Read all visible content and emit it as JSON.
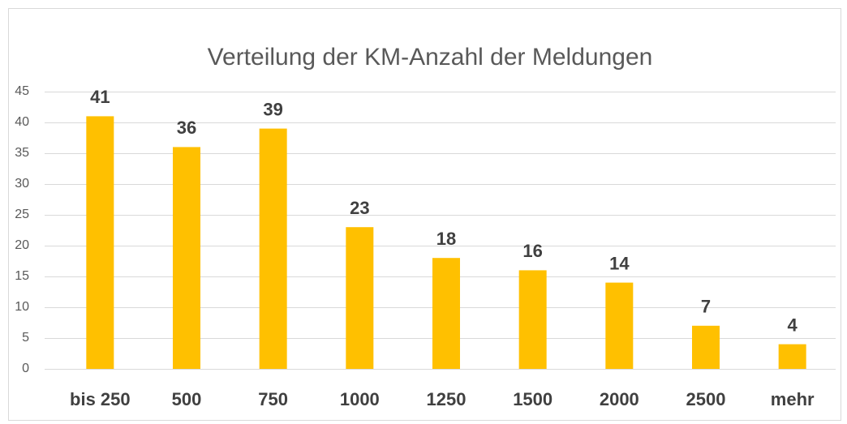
{
  "chart_data": {
    "type": "bar",
    "title": "Verteilung der KM-Anzahl der Meldungen",
    "categories": [
      "bis 250",
      "500",
      "750",
      "1000",
      "1250",
      "1500",
      "2000",
      "2500",
      "mehr"
    ],
    "values": [
      41,
      36,
      39,
      23,
      18,
      16,
      14,
      7,
      4
    ],
    "color": "#FFC000",
    "ylim": [
      0,
      45
    ],
    "yticks": [
      0,
      5,
      10,
      15,
      20,
      25,
      30,
      35,
      40,
      45
    ],
    "grid": true
  }
}
